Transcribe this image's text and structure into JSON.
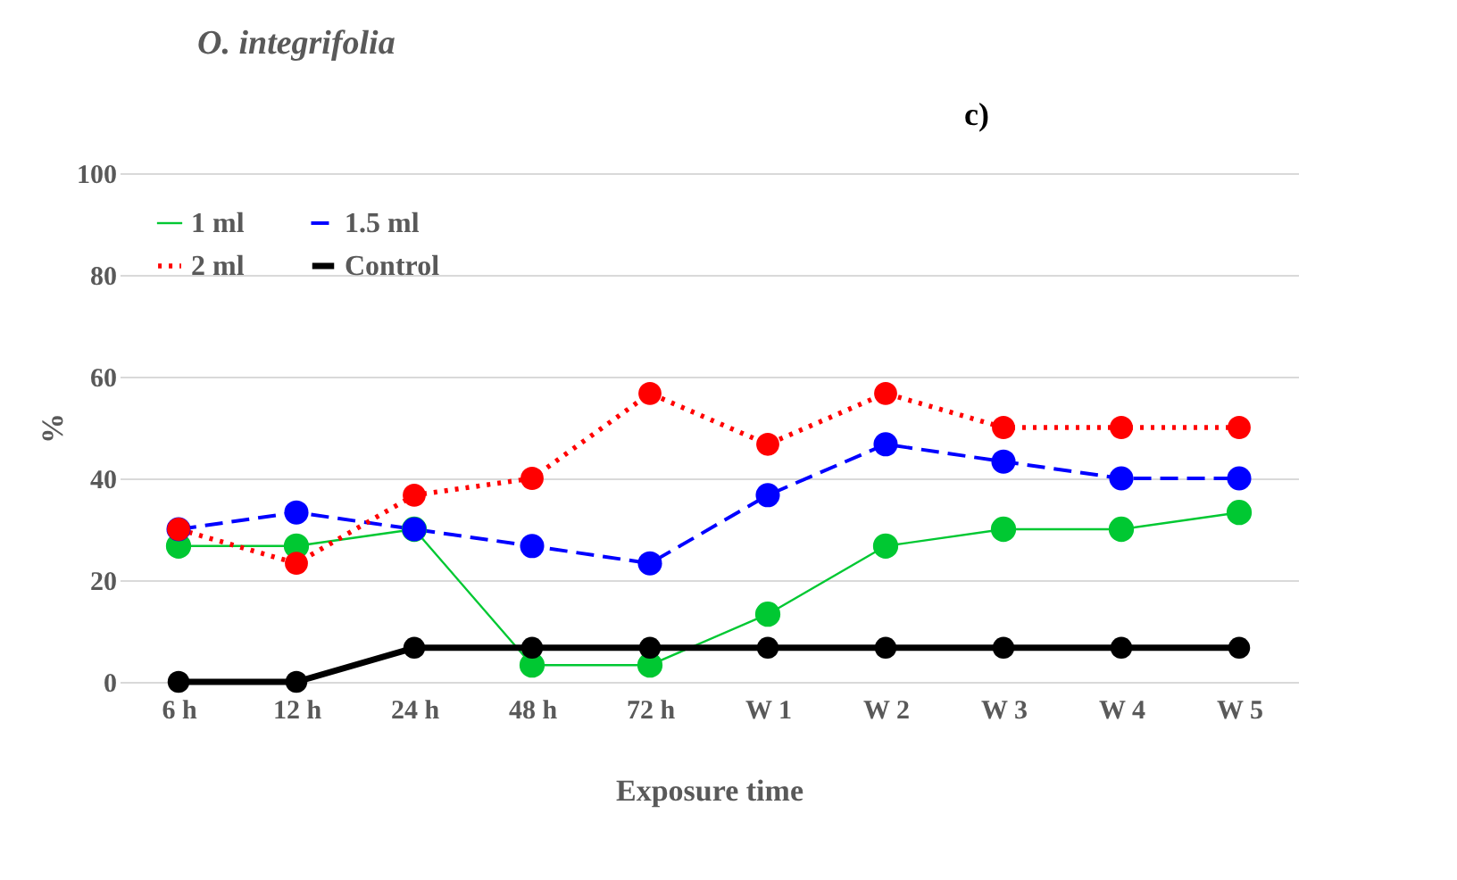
{
  "chart_data": {
    "type": "line",
    "title": "O. integrifolia",
    "annotations": [
      "c)"
    ],
    "xlabel": "Exposure  time",
    "ylabel": "%",
    "categories": [
      "6 h",
      "12 h",
      "24 h",
      "48 h",
      "72 h",
      "W 1",
      "W 2",
      "W 3",
      "W 4",
      "W 5"
    ],
    "series": [
      {
        "name": "1 ml",
        "color": "#00c832",
        "line_style": "solid",
        "values": [
          26.7,
          26.7,
          30,
          3.3,
          3.3,
          13.3,
          26.7,
          30,
          30,
          33.3
        ]
      },
      {
        "name": "1.5 ml",
        "color": "#0000ff",
        "line_style": "dashed",
        "values": [
          30,
          33.3,
          30,
          26.7,
          23.3,
          36.7,
          46.7,
          43.3,
          40,
          40
        ]
      },
      {
        "name": "2 ml",
        "color": "#ff0000",
        "line_style": "dotted",
        "values": [
          30,
          23.3,
          36.7,
          40,
          56.7,
          46.7,
          56.7,
          50,
          50,
          50
        ]
      },
      {
        "name": "Control",
        "color": "#000000",
        "line_style": "solid",
        "values": [
          0,
          0,
          6.7,
          6.7,
          6.7,
          6.7,
          6.7,
          6.7,
          6.7,
          6.7
        ]
      }
    ],
    "ylim": [
      0,
      100
    ],
    "yticks": [
      0,
      20,
      40,
      60,
      80,
      100
    ],
    "grid": "y",
    "legend": "top left",
    "marker": "circle"
  }
}
